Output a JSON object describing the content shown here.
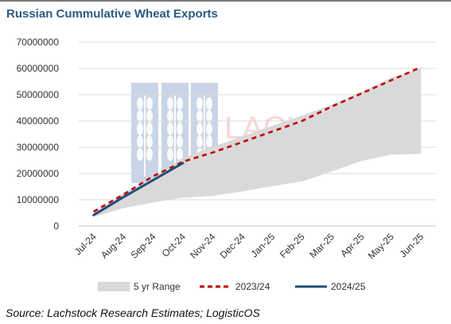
{
  "title": "Russian Cummulative Wheat Exports",
  "source": "Source: Lachstock Research Estimates; LogisticOS",
  "watermark": {
    "text": "LACHSTOCK",
    "color": "#5b7fb3"
  },
  "chart_data": {
    "type": "line",
    "categories": [
      "Jul-24",
      "Aug-24",
      "Sep-24",
      "Oct-24",
      "Nov-24",
      "Dec-24",
      "Jan-25",
      "Feb-25",
      "Mar-25",
      "Apr-25",
      "May-25",
      "Jun-25"
    ],
    "ylim": [
      0,
      70000000
    ],
    "yticks": [
      "0",
      "10000000",
      "20000000",
      "30000000",
      "40000000",
      "50000000",
      "60000000",
      "70000000"
    ],
    "grid": "horizontal",
    "legend_position": "bottom",
    "series": [
      {
        "name": "5 yr Range",
        "kind": "range-area",
        "color": "#d9d9d9",
        "low": [
          3500000,
          6800000,
          9000000,
          10800000,
          11500000,
          13200000,
          15200000,
          17000000,
          20800000,
          24800000,
          27200000,
          27500000
        ],
        "high": [
          5000000,
          12500000,
          18500000,
          26000000,
          30200000,
          34200000,
          38200000,
          42000000,
          46200000,
          51000000,
          56500000,
          60000000
        ]
      },
      {
        "name": "2023/24",
        "kind": "dashed-line",
        "color": "#c00000",
        "values": [
          5500000,
          12000000,
          19000000,
          24500000,
          28000000,
          32000000,
          36000000,
          40000000,
          45500000,
          50500000,
          55500000,
          60500000
        ]
      },
      {
        "name": "2024/25",
        "kind": "solid-line",
        "color": "#1f4e79",
        "values": [
          4200000,
          11000000,
          17500000,
          24000000,
          null,
          null,
          null,
          null,
          null,
          null,
          null,
          null
        ]
      }
    ]
  }
}
